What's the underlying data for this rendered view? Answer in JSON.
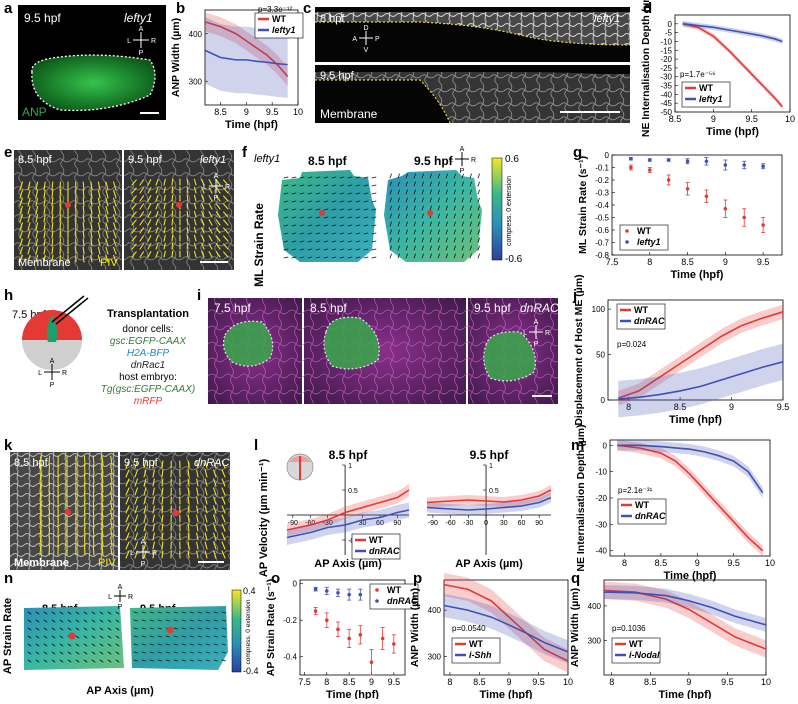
{
  "panel_letters": [
    "a",
    "b",
    "c",
    "d",
    "e",
    "f",
    "g",
    "h",
    "i",
    "j",
    "k",
    "l",
    "m",
    "n",
    "o",
    "p",
    "q"
  ],
  "colors": {
    "wt": "#e53935",
    "mut": "#3f51b5",
    "piv": "#f2e21b",
    "ct_pink": "#a640a0",
    "ct_green": "#2ea84a"
  },
  "micrographs": {
    "a": {
      "time": "9.5 hpf",
      "condition": "lefty1",
      "stain": "ANP"
    },
    "c": {
      "time_top": "8 hpf",
      "time_bottom": "9.5 hpf",
      "condition": "lefty1",
      "stain": "Membrane"
    },
    "e": {
      "time_left": "8.5 hpf",
      "time_right": "9.5 hpf",
      "condition": "lefty1",
      "stain": "Membrane",
      "overlay": "PIV"
    },
    "f": {
      "condition": "lefty1",
      "time_left": "8.5 hpf",
      "time_right": "9.5 hpf",
      "ylabel": "ML Strain Rate",
      "cbar_top": "0.6",
      "cbar_mid": "0",
      "cbar_bottom": "-0.6",
      "cbar_label": "compress.  0  extension"
    },
    "i": {
      "times": [
        "7.5 hpf",
        "8.5 hpf",
        "9.5 hpf"
      ],
      "condition": "dnRAC"
    },
    "k": {
      "time_left": "8.5 hpf",
      "time_right": "9.5 hpf",
      "condition": "dnRAC",
      "stain": "Membrane",
      "overlay": "PIV"
    },
    "n": {
      "time_left": "8.5 hpf",
      "time_right": "9.5 hpf",
      "ylabel": "AP Strain Rate",
      "xlabel": "AP Axis (µm)",
      "cbar_top": "0.4",
      "cbar_mid": "0",
      "cbar_bottom": "-0.4",
      "cbar_label": "compress.  0  extension"
    }
  },
  "orient": {
    "a": "A",
    "p": "P",
    "l": "L",
    "r": "R",
    "d": "D",
    "v": "V"
  },
  "schematic_h": {
    "time": "7.5 hpf",
    "title": "Transplantation",
    "donor_label": "donor cells:",
    "donor_items": [
      {
        "text": "gsc:EGFP-CAAX",
        "color": "#2e7d32"
      },
      {
        "text": "H2A-BFP",
        "color": "#1e88c8"
      },
      {
        "text": "dnRac1",
        "color": "#222222"
      }
    ],
    "host_label": "host embryo:",
    "host_items": [
      {
        "text": "Tg(gsc:EGFP-CAAX)",
        "color": "#2e7d32"
      },
      {
        "text": "mRFP",
        "color": "#e53935"
      }
    ]
  },
  "chart_data": [
    {
      "id": "b",
      "type": "line",
      "xlabel": "Time (hpf)",
      "ylabel": "ANP Width (µm)",
      "xlim": [
        8.2,
        10
      ],
      "ylim": [
        250,
        450
      ],
      "xticks": [
        8.5,
        9,
        9.5,
        10
      ],
      "yticks": [
        300,
        400
      ],
      "annotation": "p=3.3e⁻¹²",
      "series": [
        {
          "name": "WT",
          "x": [
            8.2,
            8.5,
            8.8,
            9.0,
            9.2,
            9.4,
            9.6,
            9.8
          ],
          "y": [
            425,
            415,
            400,
            385,
            370,
            355,
            335,
            310
          ],
          "band": 20
        },
        {
          "name": "lefty1",
          "x": [
            8.2,
            8.5,
            8.8,
            9.0,
            9.2,
            9.4,
            9.6,
            9.8
          ],
          "y": [
            365,
            350,
            345,
            345,
            342,
            340,
            337,
            335
          ],
          "band": 70
        }
      ]
    },
    {
      "id": "d",
      "type": "line",
      "xlabel": "Time (hpf)",
      "ylabel": "NE Internalisation Depth (µm)",
      "xlim": [
        8.5,
        10
      ],
      "ylim": [
        -50,
        5
      ],
      "xticks": [
        8.5,
        9,
        9.5,
        10
      ],
      "yticks": [
        0,
        -5,
        -10,
        -15,
        -20,
        -25,
        -30,
        -35,
        -40,
        -45,
        -50
      ],
      "annotation": "p=1.7e⁻⁵⁶",
      "series": [
        {
          "name": "WT",
          "x": [
            8.6,
            8.8,
            9.0,
            9.2,
            9.4,
            9.6,
            9.8,
            9.9
          ],
          "y": [
            0,
            -2,
            -7,
            -15,
            -24,
            -33,
            -42,
            -47
          ],
          "band": 1.5
        },
        {
          "name": "lefty1",
          "x": [
            8.6,
            8.8,
            9.0,
            9.2,
            9.4,
            9.6,
            9.8,
            9.9
          ],
          "y": [
            0,
            -1,
            -2,
            -3.5,
            -5,
            -6.5,
            -8.5,
            -10
          ],
          "band": 1.5
        }
      ]
    },
    {
      "id": "g",
      "type": "scatter",
      "xlabel": "Time (hpf)",
      "ylabel": "ML Strain Rate (s⁻¹)",
      "xlim": [
        7.5,
        9.75
      ],
      "ylim": [
        -0.8,
        0
      ],
      "xticks": [
        7.5,
        8,
        8.5,
        9,
        9.5
      ],
      "yticks": [
        0,
        -0.1,
        -0.2,
        -0.3,
        -0.4,
        -0.5,
        -0.6,
        -0.7,
        -0.8
      ],
      "series": [
        {
          "name": "WT",
          "x": [
            7.75,
            8,
            8.25,
            8.5,
            8.75,
            9,
            9.25,
            9.5
          ],
          "y": [
            -0.1,
            -0.12,
            -0.2,
            -0.27,
            -0.33,
            -0.43,
            -0.5,
            -0.56
          ],
          "err": [
            0.02,
            0.02,
            0.04,
            0.05,
            0.05,
            0.07,
            0.07,
            0.06
          ]
        },
        {
          "name": "lefty1",
          "x": [
            7.75,
            8,
            8.25,
            8.5,
            8.75,
            9,
            9.25,
            9.5
          ],
          "y": [
            -0.03,
            -0.04,
            -0.04,
            -0.05,
            -0.05,
            -0.08,
            -0.08,
            -0.09
          ],
          "err": [
            0.01,
            0.01,
            0.01,
            0.02,
            0.03,
            0.04,
            0.03,
            0.02
          ]
        }
      ]
    },
    {
      "id": "j",
      "type": "line",
      "xlabel": "Time (hpf)",
      "ylabel": "Displacement of Host ME (µm)",
      "xlim": [
        7.8,
        9.5
      ],
      "ylim": [
        0,
        110
      ],
      "xticks": [
        8,
        8.5,
        9,
        9.5
      ],
      "yticks": [
        0,
        50,
        100
      ],
      "annotation": "p=0.024",
      "series": [
        {
          "name": "WT",
          "x": [
            7.9,
            8.1,
            8.3,
            8.5,
            8.7,
            8.9,
            9.1,
            9.3,
            9.5
          ],
          "y": [
            2,
            10,
            25,
            40,
            55,
            70,
            82,
            90,
            97
          ],
          "band": 8
        },
        {
          "name": "dnRAC",
          "x": [
            7.9,
            8.1,
            8.3,
            8.5,
            8.7,
            8.9,
            9.1,
            9.3,
            9.5
          ],
          "y": [
            1,
            3,
            6,
            10,
            15,
            22,
            29,
            36,
            42
          ],
          "band": 20
        }
      ]
    },
    {
      "id": "l1",
      "type": "line",
      "title": "8.5 hpf",
      "xlabel": "AP Axis (µm)",
      "ylabel": "AP Velocity (µm min⁻¹)",
      "xlim": [
        -100,
        110
      ],
      "ylim": [
        -0.8,
        1
      ],
      "xticks": [
        -90,
        -60,
        -30,
        30,
        60,
        90
      ],
      "yticks": [
        1,
        0.5,
        -0.5
      ],
      "series": [
        {
          "name": "WT",
          "x": [
            -100,
            -60,
            -30,
            0,
            30,
            60,
            90,
            110
          ],
          "y": [
            -0.3,
            -0.2,
            -0.1,
            0.05,
            0.15,
            0.25,
            0.35,
            0.5
          ],
          "band": 0.12
        },
        {
          "name": "dnRAC",
          "x": [
            -100,
            -60,
            -30,
            0,
            30,
            60,
            90,
            110
          ],
          "y": [
            -0.45,
            -0.35,
            -0.25,
            -0.2,
            -0.1,
            -0.05,
            0.05,
            0.1
          ],
          "band": 0.15
        }
      ]
    },
    {
      "id": "l2",
      "type": "line",
      "title": "9.5 hpf",
      "xlabel": "AP Axis (µm)",
      "xlim": [
        -100,
        110
      ],
      "ylim": [
        -0.8,
        1
      ],
      "xticks": [
        -90,
        -60,
        -30,
        0,
        30,
        60,
        90
      ],
      "yticks": [
        1,
        0.5
      ],
      "series": [
        {
          "name": "WT",
          "x": [
            -100,
            -60,
            -30,
            0,
            30,
            60,
            90,
            110
          ],
          "y": [
            0.25,
            0.28,
            0.3,
            0.28,
            0.26,
            0.3,
            0.38,
            0.5
          ],
          "band": 0.1
        },
        {
          "name": "dnRAC",
          "x": [
            -100,
            -60,
            -30,
            0,
            30,
            60,
            90,
            110
          ],
          "y": [
            0.15,
            0.12,
            0.1,
            0.12,
            0.15,
            0.18,
            0.25,
            0.35
          ],
          "band": 0.1
        }
      ]
    },
    {
      "id": "m",
      "type": "line",
      "xlabel": "Time (hpf)",
      "ylabel": "NE Internalisation Depth (µm)",
      "xlim": [
        7.8,
        10
      ],
      "ylim": [
        -42,
        2
      ],
      "xticks": [
        8,
        8.5,
        9,
        9.5,
        10
      ],
      "yticks": [
        0,
        -10,
        -20,
        -30,
        -40
      ],
      "annotation": "p=2.1e⁻³¹",
      "series": [
        {
          "name": "WT",
          "x": [
            7.9,
            8.2,
            8.5,
            8.7,
            8.9,
            9.1,
            9.3,
            9.5,
            9.7,
            9.9
          ],
          "y": [
            0,
            -1,
            -3,
            -6,
            -11,
            -17,
            -23,
            -29,
            -35,
            -40
          ],
          "band": 2
        },
        {
          "name": "dnRAC",
          "x": [
            7.9,
            8.2,
            8.5,
            8.7,
            8.9,
            9.1,
            9.3,
            9.5,
            9.7,
            9.9
          ],
          "y": [
            0,
            0,
            -0.5,
            -1,
            -1.5,
            -2.5,
            -4,
            -6,
            -10,
            -18
          ],
          "band": 2
        }
      ]
    },
    {
      "id": "o",
      "type": "scatter",
      "xlabel": "Time (hpf)",
      "ylabel": "AP Strain Rate (s⁻¹)",
      "xlim": [
        7.4,
        9.75
      ],
      "ylim": [
        -0.5,
        0.02
      ],
      "xticks": [
        7.5,
        8,
        8.5,
        9,
        9.5
      ],
      "yticks": [
        0,
        -0.2,
        -0.4
      ],
      "series": [
        {
          "name": "WT",
          "x": [
            7.75,
            8,
            8.25,
            8.5,
            8.75,
            9,
            9.25,
            9.5
          ],
          "y": [
            -0.15,
            -0.2,
            -0.25,
            -0.3,
            -0.28,
            -0.43,
            -0.3,
            -0.33
          ],
          "err": [
            0.02,
            0.04,
            0.04,
            0.05,
            0.05,
            0.07,
            0.06,
            0.05
          ]
        },
        {
          "name": "dnRAC",
          "x": [
            7.75,
            8,
            8.25,
            8.5,
            8.75,
            9,
            9.25,
            9.5
          ],
          "y": [
            -0.03,
            -0.04,
            -0.05,
            -0.06,
            -0.06,
            -0.08,
            -0.08,
            -0.1
          ],
          "err": [
            0.01,
            0.02,
            0.02,
            0.03,
            0.03,
            0.03,
            0.03,
            0.03
          ]
        }
      ]
    },
    {
      "id": "p",
      "type": "line",
      "xlabel": "Time (hpf)",
      "ylabel": "ANP Width (µm)",
      "xlim": [
        7.9,
        10
      ],
      "ylim": [
        260,
        465
      ],
      "xticks": [
        8,
        8.5,
        9,
        9.5,
        10
      ],
      "yticks": [
        300,
        400
      ],
      "annotation": "p=0.0540",
      "series": [
        {
          "name": "WT",
          "x": [
            7.9,
            8.3,
            8.7,
            9.0,
            9.3,
            9.6,
            10.0
          ],
          "y": [
            455,
            445,
            420,
            385,
            350,
            315,
            290
          ],
          "band": 25
        },
        {
          "name": "i-Shh",
          "x": [
            7.9,
            8.3,
            8.7,
            9.0,
            9.3,
            9.6,
            10.0
          ],
          "y": [
            410,
            400,
            385,
            368,
            350,
            330,
            310
          ],
          "band": 25
        }
      ]
    },
    {
      "id": "q",
      "type": "line",
      "xlabel": "Time (hpf)",
      "ylabel": "ANP Width (µm)",
      "xlim": [
        7.9,
        10
      ],
      "ylim": [
        200,
        475
      ],
      "xticks": [
        8,
        8.5,
        9,
        9.5,
        10
      ],
      "yticks": [
        300,
        400
      ],
      "annotation": "p=0.1036",
      "series": [
        {
          "name": "WT",
          "x": [
            7.9,
            8.3,
            8.7,
            9.0,
            9.3,
            9.6,
            10.0
          ],
          "y": [
            445,
            440,
            420,
            390,
            350,
            310,
            275
          ],
          "band": 25
        },
        {
          "name": "i-Nodal",
          "x": [
            7.9,
            8.3,
            8.7,
            9.0,
            9.3,
            9.6,
            10.0
          ],
          "y": [
            440,
            438,
            430,
            415,
            395,
            370,
            345
          ],
          "band": 20
        }
      ]
    }
  ]
}
